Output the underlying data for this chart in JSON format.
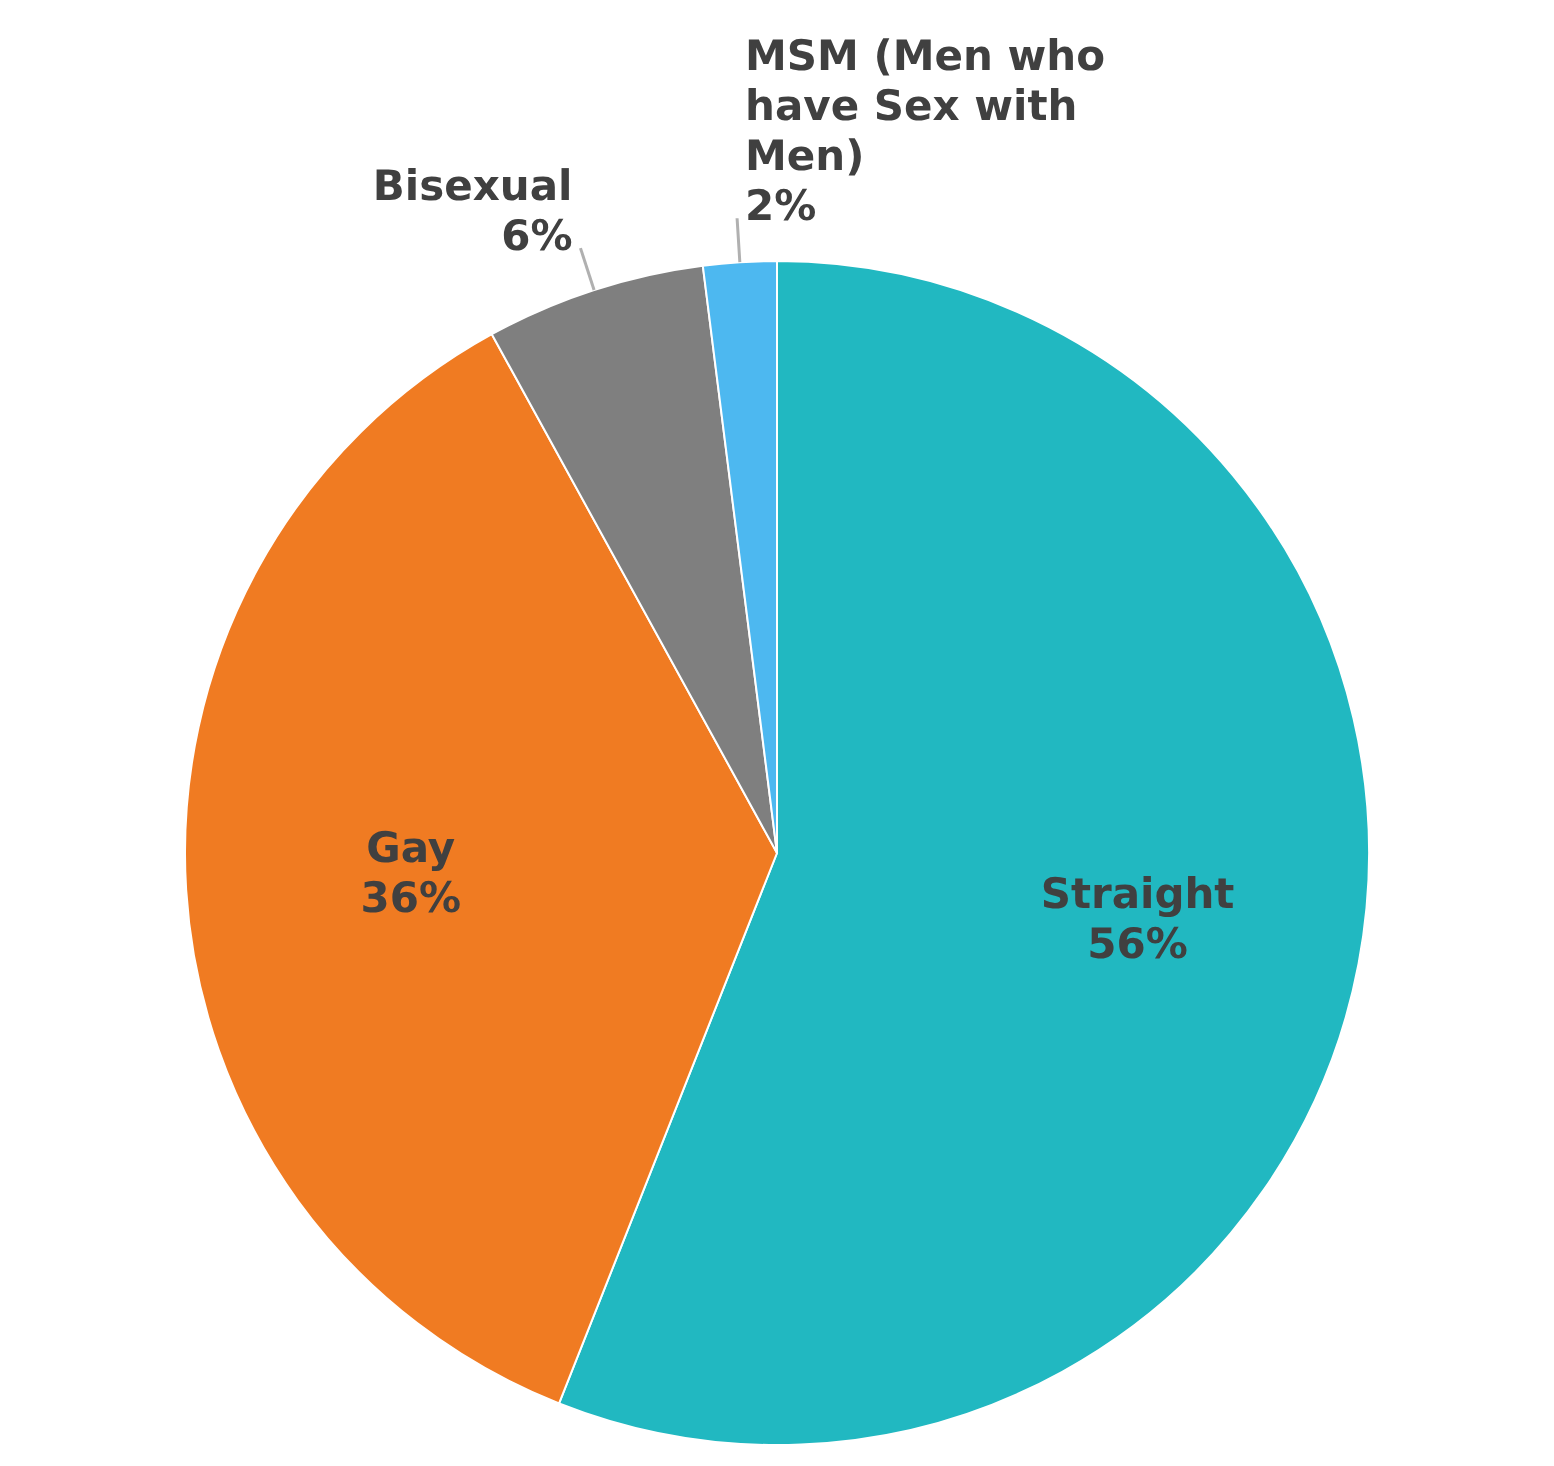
{
  "chart_data": {
    "type": "pie",
    "categories": [
      "Straight",
      "Gay",
      "Bisexual",
      "MSM (Men who have Sex with Men)"
    ],
    "values": [
      56,
      36,
      6,
      2
    ],
    "value_labels": [
      "56%",
      "36%",
      "6%",
      "2%"
    ],
    "colors": [
      "#21b8c1",
      "#f07b22",
      "#7f7f7f",
      "#4db8f0"
    ],
    "legend": false
  }
}
